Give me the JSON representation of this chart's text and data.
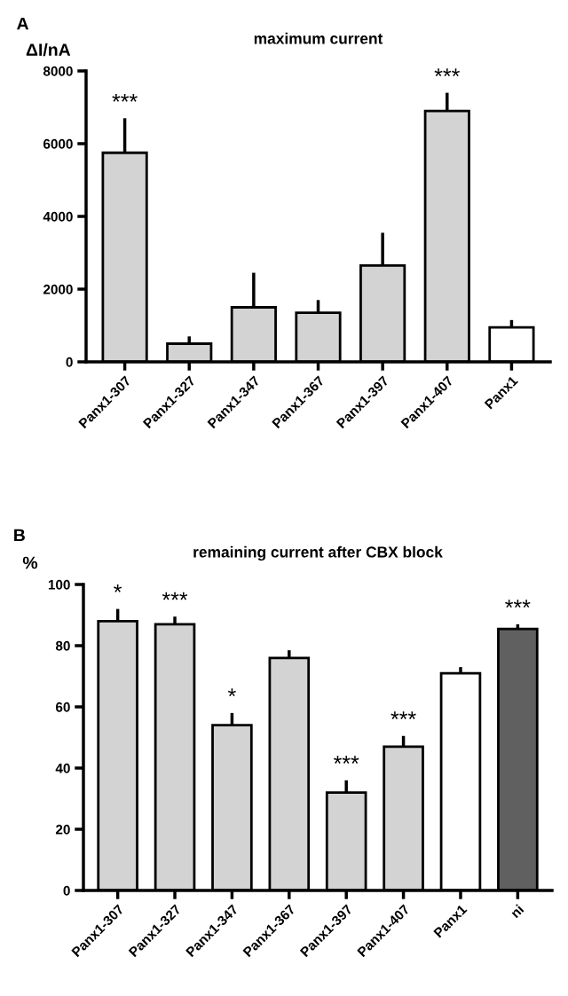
{
  "chart_data": [
    {
      "type": "bar",
      "title": "maximum current",
      "ylabel": "ΔI/nA",
      "categories": [
        "Panx1-307",
        "Panx1-327",
        "Panx1-347",
        "Panx1-367",
        "Panx1-397",
        "Panx1-407",
        "Panx1"
      ],
      "values": [
        5750,
        500,
        1500,
        1350,
        2650,
        6900,
        950
      ],
      "colors": [
        "#d3d3d3",
        "#d3d3d3",
        "#d3d3d3",
        "#d3d3d3",
        "#d3d3d3",
        "#d3d3d3",
        "#ffffff"
      ],
      "errors": [
        [
          5750,
          6700
        ],
        [
          500,
          700
        ],
        [
          1500,
          2450
        ],
        [
          1350,
          1700
        ],
        [
          2650,
          3550
        ],
        [
          6900,
          7400
        ],
        [
          950,
          1150
        ]
      ],
      "ylim": [
        0,
        8000
      ],
      "yticks": [
        0,
        2000,
        4000,
        6000,
        8000
      ],
      "grid": false,
      "value_labels": [
        "***",
        null,
        null,
        null,
        null,
        "***",
        null
      ],
      "annotations": [
        "A"
      ]
    },
    {
      "type": "bar",
      "title": "remaining current after CBX block",
      "ylabel": "%",
      "categories": [
        "Panx1-307",
        "Panx1-327",
        "Panx1-347",
        "Panx1-367",
        "Panx1-397",
        "Panx1-407",
        "Panx1",
        "ni"
      ],
      "values": [
        88,
        87,
        54,
        76,
        32,
        47,
        71,
        85.5
      ],
      "colors": [
        "#d3d3d3",
        "#d3d3d3",
        "#d3d3d3",
        "#d3d3d3",
        "#d3d3d3",
        "#d3d3d3",
        "#ffffff",
        "#606060"
      ],
      "errors": [
        [
          88,
          92
        ],
        [
          87,
          89.5
        ],
        [
          54,
          58
        ],
        [
          76,
          78.5
        ],
        [
          32,
          36
        ],
        [
          47,
          50.5
        ],
        [
          71,
          73
        ],
        [
          85.5,
          87
        ]
      ],
      "ylim": [
        0,
        100
      ],
      "yticks": [
        0,
        20,
        40,
        60,
        80,
        100
      ],
      "grid": false,
      "value_labels": [
        "*",
        "***",
        "*",
        null,
        "***",
        "***",
        null,
        "***"
      ],
      "annotations": [
        "B"
      ]
    }
  ]
}
